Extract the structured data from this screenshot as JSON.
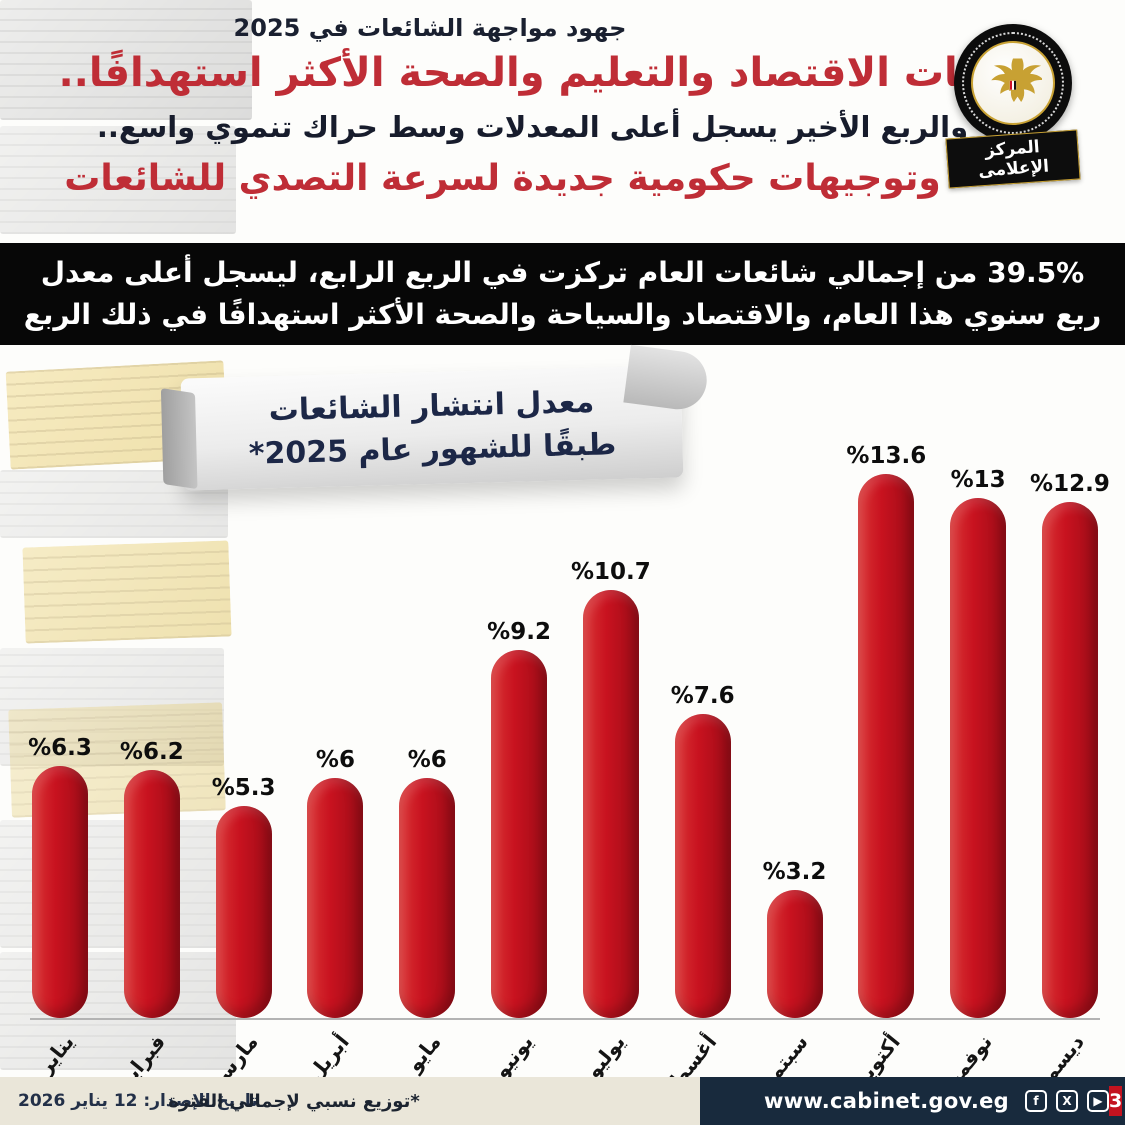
{
  "header": {
    "kicker": "جهود مواجهة الشائعات في 2025",
    "title": "قطاعات الاقتصاد والتعليم والصحة الأكثر استهدافًا..",
    "subtitle": "والربع الأخير يسجل أعلى المعدلات وسط حراك تنموي واسع..",
    "subtitle2": "وتوجيهات حكومية جديدة لسرعة التصدي للشائعات",
    "logo_label": "المركز الإعلامى"
  },
  "banner": {
    "line1": "39.5% من إجمالي شائعات العام تركزت في الربع الرابع، ليسجل أعلى معدل",
    "line2": "ربع سنوي هذا العام، والاقتصاد والسياحة والصحة الأكثر استهدافًا في ذلك الربع"
  },
  "chart_data": {
    "type": "bar",
    "title": "معدل انتشار الشائعات",
    "subtitle": "طبقًا للشهور عام 2025*",
    "categories": [
      "يناير",
      "فبراير",
      "مارس",
      "أبريل",
      "مايو",
      "يونيو",
      "يوليو",
      "أغسطس",
      "سبتمبر",
      "أكتوبر",
      "نوفمبر",
      "ديسمبر"
    ],
    "values": [
      6.3,
      6.2,
      5.3,
      6,
      6,
      9.2,
      10.7,
      7.6,
      3.2,
      13.6,
      13,
      12.9
    ],
    "labels": [
      "%6.3",
      "%6.2",
      "%5.3",
      "%6",
      "%6",
      "%9.2",
      "%10.7",
      "%7.6",
      "%3.2",
      "%13.6",
      "%13",
      "%12.9"
    ],
    "bar_color": "#c3131f",
    "ylim": [
      0,
      14.5
    ],
    "legend": "none",
    "grid": false
  },
  "footer": {
    "issue_date": "تاريخ الإصدار: 12 يناير 2026",
    "note": "*توزيع نسبي لإجمالي الفترة",
    "website": "www.cabinet.gov.eg",
    "page_number": "3",
    "social_icons": [
      "facebook",
      "x",
      "youtube"
    ]
  }
}
